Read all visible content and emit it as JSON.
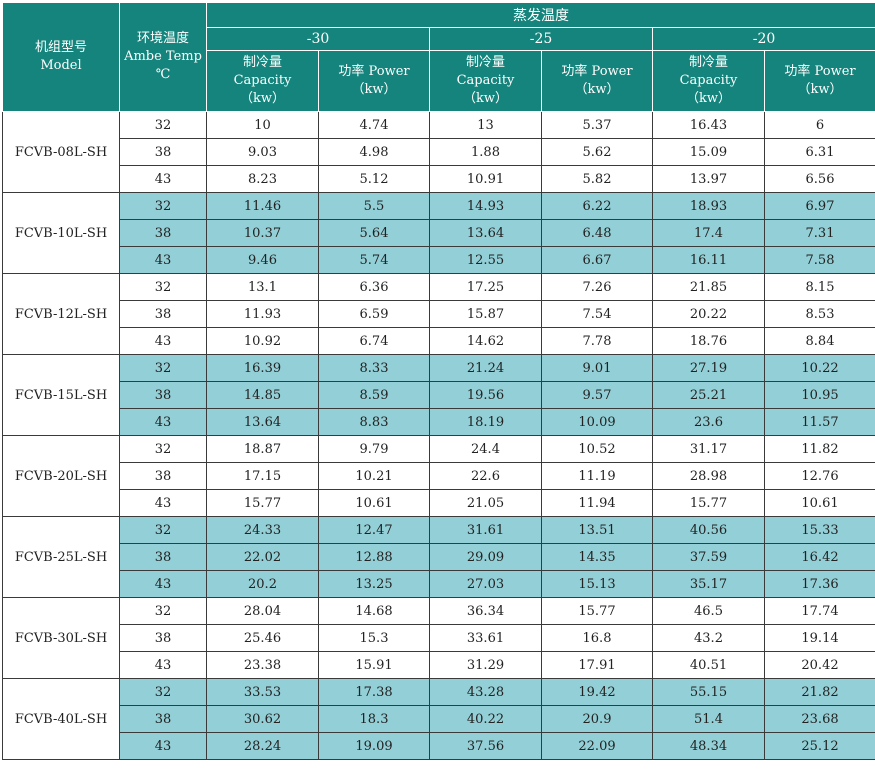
{
  "header": {
    "model_zh": "机组型号",
    "model_en": "Model",
    "ambient_zh": "环境温度",
    "ambient_en": "Ambe Temp",
    "ambient_unit": "℃",
    "evap_title": "蒸发温度",
    "evap_temps": [
      "-30",
      "-25",
      "-20"
    ],
    "capacity_zh": "制冷量",
    "capacity_en": "Capacity",
    "capacity_unit": "（kw）",
    "power_label": "功率 Power",
    "power_unit": "（kw）"
  },
  "shade_color": "#93cfd6",
  "header_color": "#15847c",
  "models": [
    {
      "name": "FCVB-08L-SH",
      "rows": [
        [
          "32",
          "10",
          "4.74",
          "13",
          "5.37",
          "16.43",
          "6"
        ],
        [
          "38",
          "9.03",
          "4.98",
          "1.88",
          "5.62",
          "15.09",
          "6.31"
        ],
        [
          "43",
          "8.23",
          "5.12",
          "10.91",
          "5.82",
          "13.97",
          "6.56"
        ]
      ]
    },
    {
      "name": "FCVB-10L-SH",
      "rows": [
        [
          "32",
          "11.46",
          "5.5",
          "14.93",
          "6.22",
          "18.93",
          "6.97"
        ],
        [
          "38",
          "10.37",
          "5.64",
          "13.64",
          "6.48",
          "17.4",
          "7.31"
        ],
        [
          "43",
          "9.46",
          "5.74",
          "12.55",
          "6.67",
          "16.11",
          "7.58"
        ]
      ]
    },
    {
      "name": "FCVB-12L-SH",
      "rows": [
        [
          "32",
          "13.1",
          "6.36",
          "17.25",
          "7.26",
          "21.85",
          "8.15"
        ],
        [
          "38",
          "11.93",
          "6.59",
          "15.87",
          "7.54",
          "20.22",
          "8.53"
        ],
        [
          "43",
          "10.92",
          "6.74",
          "14.62",
          "7.78",
          "18.76",
          "8.84"
        ]
      ]
    },
    {
      "name": "FCVB-15L-SH",
      "rows": [
        [
          "32",
          "16.39",
          "8.33",
          "21.24",
          "9.01",
          "27.19",
          "10.22"
        ],
        [
          "38",
          "14.85",
          "8.59",
          "19.56",
          "9.57",
          "25.21",
          "10.95"
        ],
        [
          "43",
          "13.64",
          "8.83",
          "18.19",
          "10.09",
          "23.6",
          "11.57"
        ]
      ]
    },
    {
      "name": "FCVB-20L-SH",
      "rows": [
        [
          "32",
          "18.87",
          "9.79",
          "24.4",
          "10.52",
          "31.17",
          "11.82"
        ],
        [
          "38",
          "17.15",
          "10.21",
          "22.6",
          "11.19",
          "28.98",
          "12.76"
        ],
        [
          "43",
          "15.77",
          "10.61",
          "21.05",
          "11.94",
          "15.77",
          "10.61"
        ]
      ]
    },
    {
      "name": "FCVB-25L-SH",
      "rows": [
        [
          "32",
          "24.33",
          "12.47",
          "31.61",
          "13.51",
          "40.56",
          "15.33"
        ],
        [
          "38",
          "22.02",
          "12.88",
          "29.09",
          "14.35",
          "37.59",
          "16.42"
        ],
        [
          "43",
          "20.2",
          "13.25",
          "27.03",
          "15.13",
          "35.17",
          "17.36"
        ]
      ]
    },
    {
      "name": "FCVB-30L-SH",
      "rows": [
        [
          "32",
          "28.04",
          "14.68",
          "36.34",
          "15.77",
          "46.5",
          "17.74"
        ],
        [
          "38",
          "25.46",
          "15.3",
          "33.61",
          "16.8",
          "43.2",
          "19.14"
        ],
        [
          "43",
          "23.38",
          "15.91",
          "31.29",
          "17.91",
          "40.51",
          "20.42"
        ]
      ]
    },
    {
      "name": "FCVB-40L-SH",
      "rows": [
        [
          "32",
          "33.53",
          "17.38",
          "43.28",
          "19.42",
          "55.15",
          "21.82"
        ],
        [
          "38",
          "30.62",
          "18.3",
          "40.22",
          "20.9",
          "51.4",
          "23.68"
        ],
        [
          "43",
          "28.24",
          "19.09",
          "37.56",
          "22.09",
          "48.34",
          "25.12"
        ]
      ]
    }
  ]
}
